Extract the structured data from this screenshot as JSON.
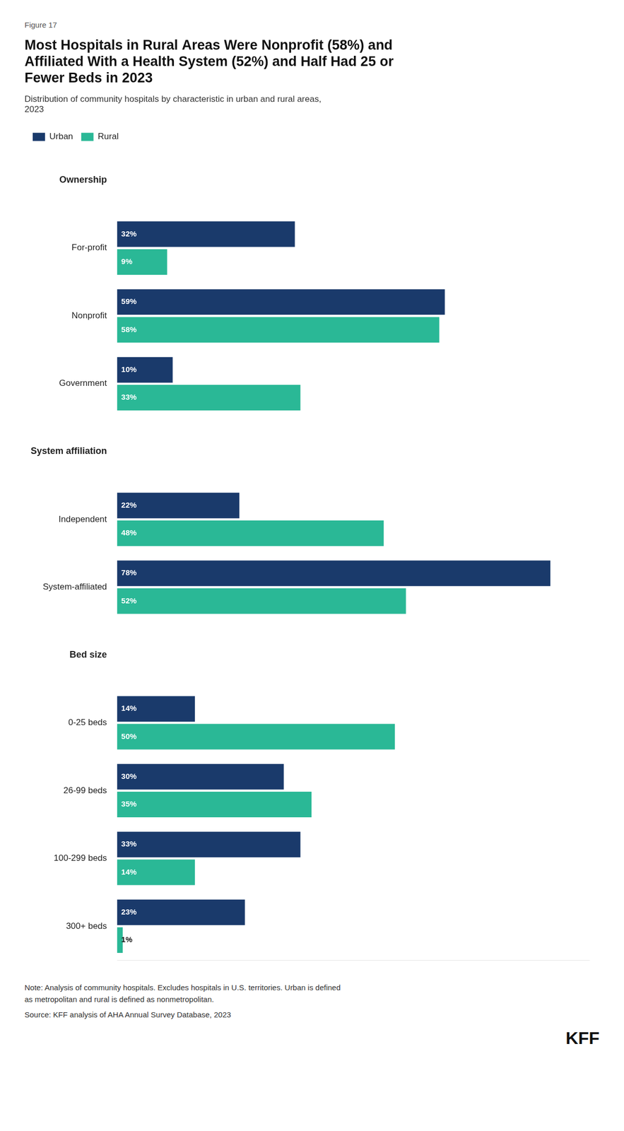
{
  "chart_data": {
    "type": "bar",
    "orientation": "horizontal",
    "title": "Most Hospitals in Rural Areas Were Nonprofit (58%) and\nAffiliated With a Health System (52%) and Half Had 25 or\nFewer Beds in 2023",
    "subtitle": "Distribution of community hospitals by characteristic in urban and rural areas,\n2023",
    "categories": [
      "Ownership",
      "For-profit",
      "Nonprofit",
      "Government",
      "System affiliation",
      "Independent",
      "System-affiliated",
      "Bed size",
      "0-25 beds",
      "26-99 beds",
      "100-299 beds",
      "300+ beds"
    ],
    "series": [
      {
        "name": "Urban",
        "color": "#1a3a6b",
        "values": [
          null,
          32,
          59,
          10,
          null,
          22,
          78,
          null,
          14,
          30,
          33,
          23
        ],
        "value_labels": [
          null,
          "32%",
          "59%",
          "10%",
          null,
          "22%",
          "78%",
          null,
          "14%",
          "30%",
          "33%",
          "23%"
        ]
      },
      {
        "name": "Rural",
        "color": "#2ab896",
        "values": [
          null,
          9,
          58,
          33,
          null,
          48,
          52,
          null,
          50,
          35,
          14,
          1
        ],
        "value_labels": [
          null,
          "9%",
          "58%",
          "33%",
          null,
          "48%",
          "52%",
          null,
          "50%",
          "35%",
          "14%",
          "1%"
        ]
      }
    ],
    "xlim": [
      0,
      85
    ],
    "data_labels": true,
    "tick_labels": "y",
    "grid": false,
    "legend": "upper left",
    "annotations": [
      "Figure 17",
      "Note: Analysis of community hospitals. Excludes hospitals in U.S. territories. Urban is defined\nas metropolitan and rural is defined as nonmetropolitan.",
      "Source: KFF analysis of AHA Annual Survey Database, 2023",
      "KFF"
    ]
  }
}
